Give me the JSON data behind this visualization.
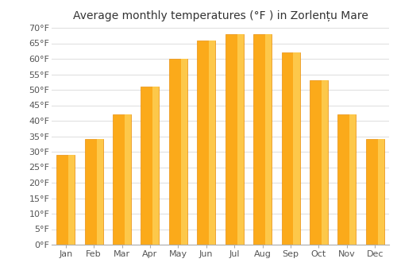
{
  "title": "Average monthly temperatures (°F ) in Zorlențu Mare",
  "months": [
    "Jan",
    "Feb",
    "Mar",
    "Apr",
    "May",
    "Jun",
    "Jul",
    "Aug",
    "Sep",
    "Oct",
    "Nov",
    "Dec"
  ],
  "values": [
    29,
    34,
    42,
    51,
    60,
    66,
    68,
    68,
    62,
    53,
    42,
    34
  ],
  "bar_color_main": "#FBAA1A",
  "bar_color_light": "#FDC84A",
  "bar_color_edge": "#E89010",
  "ylim": [
    0,
    70
  ],
  "yticks": [
    0,
    5,
    10,
    15,
    20,
    25,
    30,
    35,
    40,
    45,
    50,
    55,
    60,
    65,
    70
  ],
  "ytick_labels": [
    "0°F",
    "5°F",
    "10°F",
    "15°F",
    "20°F",
    "25°F",
    "30°F",
    "35°F",
    "40°F",
    "45°F",
    "50°F",
    "55°F",
    "60°F",
    "65°F",
    "70°F"
  ],
  "background_color": "#ffffff",
  "grid_color": "#dddddd",
  "title_fontsize": 10,
  "tick_fontsize": 8,
  "bar_width": 0.65
}
